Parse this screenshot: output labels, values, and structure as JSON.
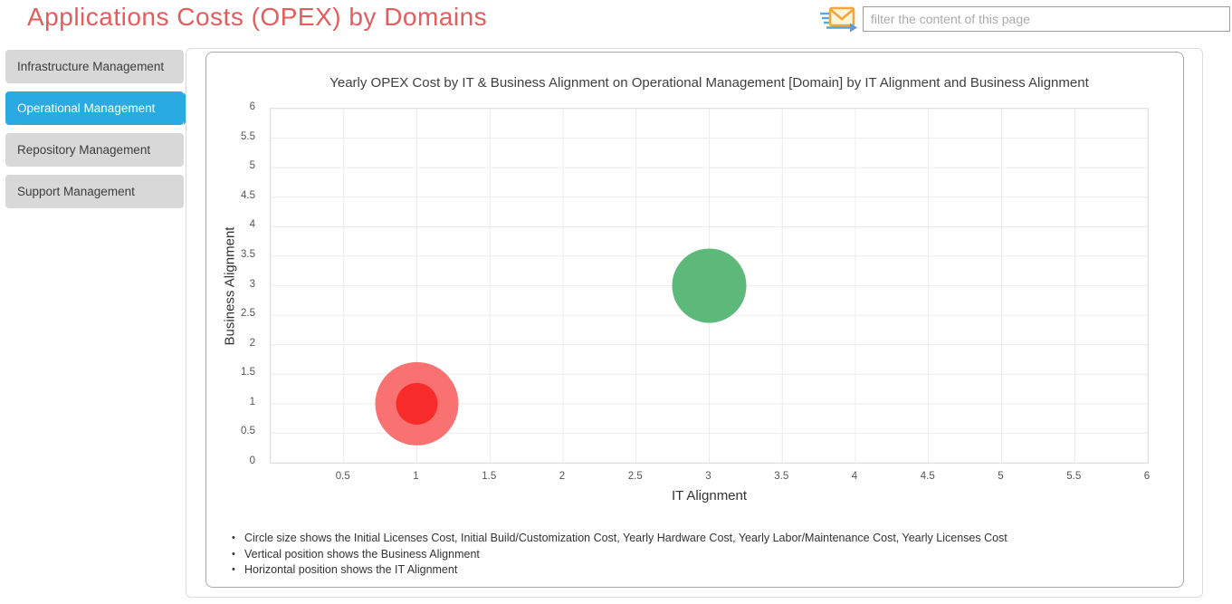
{
  "page": {
    "title": "Applications Costs (OPEX) by Domains"
  },
  "filter": {
    "placeholder": "filter the content of this page"
  },
  "icons": {
    "send_mail": "send-mail-icon"
  },
  "sidebar": {
    "items": [
      {
        "label": "Infrastructure Management",
        "active": false
      },
      {
        "label": "Operational Management",
        "active": true
      },
      {
        "label": "Repository Management",
        "active": false
      },
      {
        "label": "Support Management",
        "active": false
      }
    ]
  },
  "colors": {
    "page_title_red": "#e25d5d",
    "active_tab_blue": "#29abe2",
    "inactive_tab_gray": "#d8d8d8",
    "bubble_green": "#5cb97a",
    "bubble_red_outer": "#f97171",
    "bubble_red_inner": "#f82b2b",
    "gridline": "#ececec"
  },
  "chart_data": {
    "type": "scatter",
    "title": "Yearly OPEX Cost by IT & Business Alignment on Operational Management [Domain] by IT Alignment and Business Alignment",
    "xlabel": "IT Alignment",
    "ylabel": "Business Alignment",
    "xlim": [
      0,
      6
    ],
    "ylim": [
      0,
      6
    ],
    "tick_step": 0.5,
    "grid": true,
    "legend": "none",
    "points": [
      {
        "name": "green-bubble",
        "x": 3,
        "y": 3,
        "r": 41,
        "color": "#5cb97a"
      },
      {
        "name": "red-bubble-outer",
        "x": 1,
        "y": 1,
        "r": 46,
        "color": "#f97171"
      },
      {
        "name": "red-bubble-inner",
        "x": 1,
        "y": 1,
        "r": 23,
        "color": "#f82b2b"
      }
    ],
    "notes": [
      "Circle size shows the Initial Licenses Cost, Initial Build/Customization Cost, Yearly Hardware Cost, Yearly Labor/Maintenance Cost, Yearly Licenses Cost",
      "Vertical position shows the Business Alignment",
      "Horizontal position shows the IT Alignment"
    ]
  }
}
